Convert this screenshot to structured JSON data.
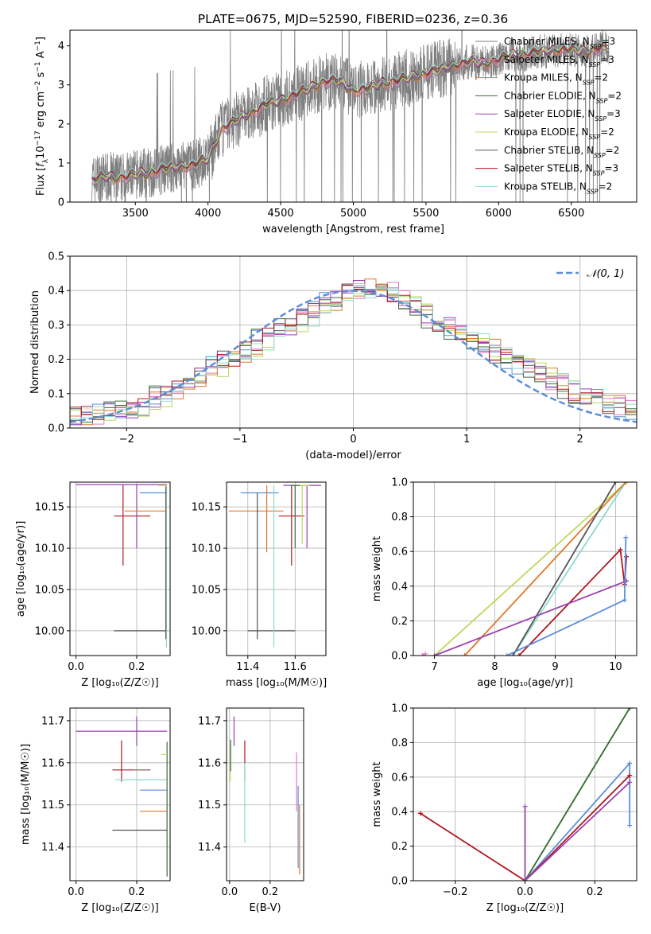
{
  "colors": {
    "chabrier_miles": "#7f7f7f",
    "salpeter_miles": "#e377c2",
    "kroupa_miles": "#e0772a",
    "chabrier_elodie": "#3a6e3a",
    "salpeter_elodie": "#9b3fb0",
    "kroupa_elodie": "#bcd85a",
    "chabrier_stelib": "#555555",
    "salpeter_stelib": "#b0171f",
    "kroupa_stelib": "#8fd9d0",
    "gauss": "#5b8fd8",
    "blue_extra": "#5b8fd8",
    "grid": "#b0b0b0"
  },
  "chart_data": [
    {
      "id": "spectrum",
      "type": "line",
      "title": "PLATE=0675, MJD=52590, FIBERID=0236, z=0.36",
      "xlabel": "wavelength [Angstrom, rest frame]",
      "ylabel": "Flux [f_λ 10^-17 erg cm^-2 s^-1 A^-1]",
      "xlim": [
        3050,
        6950
      ],
      "ylim": [
        0,
        4.4
      ],
      "xticks": [
        "3500",
        "4000",
        "4500",
        "5000",
        "5500",
        "6000",
        "6500"
      ],
      "yticks": [
        "0",
        "1",
        "2",
        "3",
        "4"
      ],
      "grid": false,
      "legend_position": "top-right",
      "legend": [
        {
          "label": "Chabrier MILES, N",
          "sub": "SSP",
          "tail": "=3"
        },
        {
          "label": "Salpeter MILES, N",
          "sub": "SSP",
          "tail": "=3"
        },
        {
          "label": "Kroupa MILES, N",
          "sub": "SSP",
          "tail": "=2"
        },
        {
          "label": "Chabrier ELODIE, N",
          "sub": "SSP",
          "tail": "=2"
        },
        {
          "label": "Salpeter ELODIE, N",
          "sub": "SSP",
          "tail": "=3"
        },
        {
          "label": "Kroupa ELODIE, N",
          "sub": "SSP",
          "tail": "=2"
        },
        {
          "label": "Chabrier STELIB, N",
          "sub": "SSP",
          "tail": "=2"
        },
        {
          "label": "Salpeter STELIB, N",
          "sub": "SSP",
          "tail": "=3"
        },
        {
          "label": "Kroupa STELIB, N",
          "sub": "SSP",
          "tail": "=2"
        }
      ],
      "continuum": {
        "x": [
          3200,
          3250,
          3300,
          3400,
          3500,
          3600,
          3700,
          3800,
          3900,
          4000,
          4100,
          4200,
          4300,
          4400,
          4500,
          4600,
          4700,
          4800,
          4900,
          5000,
          5100,
          5200,
          5300,
          5400,
          5500,
          5600,
          5700,
          5800,
          5900,
          6000,
          6100,
          6200,
          6300,
          6400,
          6500,
          6600,
          6700,
          6750
        ],
        "y": [
          0.55,
          0.62,
          0.65,
          0.62,
          0.7,
          0.75,
          0.85,
          0.9,
          0.95,
          1.1,
          1.9,
          2.1,
          2.3,
          2.5,
          2.6,
          2.75,
          2.9,
          3.1,
          3.1,
          2.85,
          2.9,
          3.05,
          3.1,
          3.2,
          3.3,
          3.4,
          3.5,
          3.6,
          3.55,
          3.65,
          3.75,
          3.8,
          3.85,
          3.9,
          3.9,
          3.85,
          3.95,
          3.95
        ]
      }
    },
    {
      "id": "residuals",
      "type": "histogram",
      "xlabel": "(data-model)/error",
      "ylabel": "Normed distribution",
      "xlim": [
        -2.5,
        2.5
      ],
      "ylim": [
        0,
        0.5
      ],
      "xticks": [
        "−2",
        "−1",
        "0",
        "1",
        "2"
      ],
      "yticks": [
        "0.0",
        "0.1",
        "0.2",
        "0.3",
        "0.4",
        "0.5"
      ],
      "grid": true,
      "legend_position": "top-right",
      "legend": [
        {
          "label": "𝒩(0, 1)"
        }
      ],
      "bin_width": 0.1,
      "base_profile": {
        "x": [
          -2.5,
          -2.0,
          -1.5,
          -1.0,
          -0.5,
          0.0,
          0.25,
          0.5,
          0.75,
          1.0,
          1.5,
          2.0,
          2.5
        ],
        "y": [
          0.03,
          0.05,
          0.12,
          0.22,
          0.31,
          0.4,
          0.41,
          0.37,
          0.31,
          0.27,
          0.18,
          0.1,
          0.05
        ]
      }
    },
    {
      "id": "age_vs_Z",
      "type": "errorbar",
      "xlabel": "Z [log₁₀(Z/Z☉)]",
      "ylabel": "age  [log₁₀(age/yr)]",
      "xlim": [
        -0.02,
        0.31
      ],
      "ylim": [
        9.97,
        10.18
      ],
      "xticks": [
        "0.0",
        "0.2"
      ],
      "yticks": [
        "10.00",
        "10.05",
        "10.10",
        "10.15"
      ],
      "grid": true,
      "points": [
        {
          "x": 0.155,
          "y": 10.139,
          "xlo": 0.125,
          "xhi": 0.245,
          "ylo": 10.079,
          "yhi": 10.177,
          "c": "salpeter_stelib"
        },
        {
          "x": 0.2,
          "y": 10.177,
          "xlo": 0.0,
          "xhi": 0.3,
          "ylo": 10.1,
          "yhi": 10.177,
          "c": "salpeter_elodie"
        },
        {
          "x": 0.255,
          "y": 10.167,
          "xlo": 0.21,
          "xhi": 0.3,
          "ylo": 10.167,
          "yhi": 10.167,
          "c": "blue_extra"
        },
        {
          "x": 0.205,
          "y": 10.0,
          "xlo": 0.125,
          "xhi": 0.3,
          "ylo": 10.0,
          "yhi": 10.0,
          "c": "chabrier_stelib"
        },
        {
          "x": 0.298,
          "y": 10.1,
          "xlo": 0.295,
          "xhi": 0.3,
          "ylo": 9.98,
          "yhi": 10.175,
          "c": "kroupa_stelib"
        },
        {
          "x": 0.296,
          "y": 10.1,
          "xlo": 0.294,
          "xhi": 0.3,
          "ylo": 9.99,
          "yhi": 10.175,
          "c": "chabrier_stelib"
        },
        {
          "x": 0.29,
          "y": 10.145,
          "xlo": 0.16,
          "xhi": 0.3,
          "ylo": 10.145,
          "yhi": 10.145,
          "c": "kroupa_miles"
        },
        {
          "x": 0.295,
          "y": 10.176,
          "xlo": 0.27,
          "xhi": 0.3,
          "ylo": 10.176,
          "yhi": 10.176,
          "c": "kroupa_elodie"
        }
      ]
    },
    {
      "id": "age_vs_mass",
      "type": "errorbar",
      "xlabel": "mass [log₁₀(M/M☉)]",
      "ylabel": "",
      "xlim": [
        11.31,
        11.73
      ],
      "ylim": [
        9.97,
        10.18
      ],
      "xticks": [
        "11.4",
        "11.6"
      ],
      "yticks": [
        "10.00",
        "10.05",
        "10.10",
        "10.15"
      ],
      "grid": true,
      "points": [
        {
          "x": 11.37,
          "y": 10.145,
          "xlo": 11.32,
          "xhi": 11.55,
          "ylo": 10.145,
          "yhi": 10.145,
          "c": "kroupa_miles"
        },
        {
          "x": 11.45,
          "y": 10.167,
          "xlo": 11.37,
          "xhi": 11.53,
          "ylo": 10.167,
          "yhi": 10.167,
          "c": "blue_extra"
        },
        {
          "x": 11.44,
          "y": 10.0,
          "xlo": 11.4,
          "xhi": 11.6,
          "ylo": 9.99,
          "yhi": 10.167,
          "c": "chabrier_stelib"
        },
        {
          "x": 11.48,
          "y": 10.1,
          "xlo": 11.48,
          "xhi": 11.48,
          "ylo": 10.095,
          "yhi": 10.176,
          "c": "kroupa_miles"
        },
        {
          "x": 11.51,
          "y": 10.1,
          "xlo": 11.51,
          "xhi": 11.51,
          "ylo": 9.98,
          "yhi": 10.176,
          "c": "kroupa_stelib"
        },
        {
          "x": 11.585,
          "y": 10.139,
          "xlo": 11.53,
          "xhi": 11.64,
          "ylo": 10.079,
          "yhi": 10.176,
          "c": "salpeter_stelib"
        },
        {
          "x": 11.65,
          "y": 10.176,
          "xlo": 11.55,
          "xhi": 11.71,
          "ylo": 10.1,
          "yhi": 10.176,
          "c": "salpeter_elodie"
        },
        {
          "x": 11.63,
          "y": 10.176,
          "xlo": 11.6,
          "xhi": 11.66,
          "ylo": 10.105,
          "yhi": 10.176,
          "c": "kroupa_elodie"
        },
        {
          "x": 11.6,
          "y": 10.176,
          "xlo": 11.58,
          "xhi": 11.62,
          "ylo": 10.1,
          "yhi": 10.176,
          "c": "chabrier_elodie"
        }
      ]
    },
    {
      "id": "massweight_vs_age",
      "type": "line",
      "xlabel": "age  [log₁₀(age/yr)]",
      "ylabel": "mass weight",
      "xlim": [
        6.65,
        10.35
      ],
      "ylim": [
        0,
        1
      ],
      "xticks": [
        "7",
        "8",
        "9",
        "10"
      ],
      "yticks": [
        "0.0",
        "0.2",
        "0.4",
        "0.6",
        "0.8",
        "1.0"
      ],
      "grid": true,
      "series": [
        {
          "c": "kroupa_elodie",
          "x": [
            7.0,
            10.18
          ],
          "y": [
            0.0,
            1.0
          ]
        },
        {
          "c": "kroupa_stelib",
          "x": [
            8.3,
            10.17
          ],
          "y": [
            0.0,
            1.0
          ]
        },
        {
          "c": "kroupa_miles",
          "x": [
            7.5,
            10.17
          ],
          "y": [
            0.0,
            1.0
          ]
        },
        {
          "c": "chabrier_stelib",
          "x": [
            8.3,
            10.0
          ],
          "y": [
            0.0,
            1.0
          ]
        },
        {
          "c": "salpeter_stelib",
          "x": [
            8.4,
            10.08,
            10.15,
            10.18
          ],
          "y": [
            0.0,
            0.61,
            0.41,
            0.57
          ]
        },
        {
          "c": "salpeter_elodie",
          "x": [
            7.0,
            10.18
          ],
          "y": [
            0.0,
            0.43
          ]
        },
        {
          "c": "blue_extra",
          "x": [
            8.2,
            10.15,
            10.17
          ],
          "y": [
            0.0,
            0.32,
            0.68
          ]
        },
        {
          "c": "salpeter_miles",
          "x": [
            6.8,
            6.85
          ],
          "y": [
            0.0,
            0.01
          ]
        }
      ]
    },
    {
      "id": "mass_vs_Z",
      "type": "errorbar",
      "xlabel": "Z [log₁₀(Z/Z☉)]",
      "ylabel": "mass [log₁₀(M/M☉)]",
      "xlim": [
        -0.02,
        0.31
      ],
      "ylim": [
        11.32,
        11.73
      ],
      "xticks": [
        "0.0",
        "0.2"
      ],
      "yticks": [
        "11.4",
        "11.5",
        "11.6",
        "11.7"
      ],
      "grid": true,
      "points": [
        {
          "x": 0.2,
          "y": 11.675,
          "xlo": 0.0,
          "xhi": 0.3,
          "ylo": 11.64,
          "yhi": 11.71,
          "c": "salpeter_elodie"
        },
        {
          "x": 0.15,
          "y": 11.583,
          "xlo": 0.12,
          "xhi": 0.245,
          "ylo": 11.555,
          "yhi": 11.653,
          "c": "salpeter_stelib"
        },
        {
          "x": 0.2,
          "y": 11.583,
          "xlo": 0.19,
          "xhi": 0.24,
          "ylo": 11.583,
          "yhi": 11.583,
          "c": "chabrier_miles"
        },
        {
          "x": 0.3,
          "y": 11.56,
          "xlo": 0.13,
          "xhi": 0.3,
          "ylo": 11.56,
          "yhi": 11.56,
          "c": "kroupa_stelib"
        },
        {
          "x": 0.3,
          "y": 11.535,
          "xlo": 0.21,
          "xhi": 0.3,
          "ylo": 11.535,
          "yhi": 11.535,
          "c": "blue_extra"
        },
        {
          "x": 0.3,
          "y": 11.485,
          "xlo": 0.21,
          "xhi": 0.3,
          "ylo": 11.485,
          "yhi": 11.485,
          "c": "kroupa_miles"
        },
        {
          "x": 0.3,
          "y": 11.44,
          "xlo": 0.12,
          "xhi": 0.3,
          "ylo": 11.44,
          "yhi": 11.44,
          "c": "chabrier_stelib"
        },
        {
          "x": 0.3,
          "y": 11.6,
          "xlo": 0.3,
          "xhi": 0.3,
          "ylo": 11.33,
          "yhi": 11.65,
          "c": "chabrier_elodie"
        },
        {
          "x": 0.29,
          "y": 11.62,
          "xlo": 0.28,
          "xhi": 0.3,
          "ylo": 11.62,
          "yhi": 11.62,
          "c": "kroupa_elodie"
        }
      ]
    },
    {
      "id": "mass_vs_ebv",
      "type": "errorbar",
      "xlabel": "E(B-V)",
      "ylabel": "",
      "xlim": [
        -0.015,
        0.365
      ],
      "ylim": [
        11.32,
        11.73
      ],
      "xticks": [
        "0.0",
        "0.2"
      ],
      "yticks": [
        "11.4",
        "11.5",
        "11.6",
        "11.7"
      ],
      "grid": true,
      "points": [
        {
          "x": 0.003,
          "y": 11.6,
          "xlo": 0.003,
          "xhi": 0.003,
          "ylo": 11.555,
          "yhi": 11.645,
          "c": "kroupa_elodie"
        },
        {
          "x": 0.005,
          "y": 11.62,
          "xlo": 0.005,
          "xhi": 0.005,
          "ylo": 11.58,
          "yhi": 11.655,
          "c": "chabrier_elodie"
        },
        {
          "x": 0.022,
          "y": 11.675,
          "xlo": 0.022,
          "xhi": 0.022,
          "ylo": 11.64,
          "yhi": 11.71,
          "c": "salpeter_elodie"
        },
        {
          "x": 0.075,
          "y": 11.583,
          "xlo": 0.075,
          "xhi": 0.075,
          "ylo": 11.555,
          "yhi": 11.653,
          "c": "salpeter_stelib"
        },
        {
          "x": 0.075,
          "y": 11.5,
          "xlo": 0.075,
          "xhi": 0.075,
          "ylo": 11.41,
          "yhi": 11.6,
          "c": "kroupa_stelib"
        },
        {
          "x": 0.33,
          "y": 11.56,
          "xlo": 0.33,
          "xhi": 0.33,
          "ylo": 11.485,
          "yhi": 11.625,
          "c": "salpeter_miles"
        },
        {
          "x": 0.338,
          "y": 11.45,
          "xlo": 0.338,
          "xhi": 0.338,
          "ylo": 11.35,
          "yhi": 11.545,
          "c": "blue_extra"
        },
        {
          "x": 0.345,
          "y": 11.42,
          "xlo": 0.345,
          "xhi": 0.345,
          "ylo": 11.335,
          "yhi": 11.5,
          "c": "kroupa_miles"
        }
      ]
    },
    {
      "id": "massweight_vs_Z",
      "type": "line",
      "xlabel": "Z [log₁₀(Z/Z☉)]",
      "ylabel": "mass weight",
      "xlim": [
        -0.32,
        0.32
      ],
      "ylim": [
        0,
        1
      ],
      "xticks": [
        "−0.2",
        "0.0",
        "0.2"
      ],
      "yticks": [
        "0.0",
        "0.2",
        "0.4",
        "0.6",
        "0.8",
        "1.0"
      ],
      "grid": true,
      "series": [
        {
          "c": "kroupa_stelib",
          "x": [
            0.0,
            0.3
          ],
          "y": [
            0.0,
            1.0
          ]
        },
        {
          "c": "kroupa_elodie",
          "x": [
            0.0,
            0.3
          ],
          "y": [
            0.0,
            1.0
          ]
        },
        {
          "c": "chabrier_elodie",
          "x": [
            0.0,
            0.3
          ],
          "y": [
            0.0,
            1.0
          ]
        },
        {
          "c": "blue_extra",
          "x": [
            0.0,
            0.3,
            0.3
          ],
          "y": [
            0.0,
            0.68,
            0.32
          ]
        },
        {
          "c": "salpeter_stelib",
          "x": [
            -0.3,
            0.0,
            0.3
          ],
          "y": [
            0.39,
            0.0,
            0.61
          ]
        },
        {
          "c": "salpeter_elodie",
          "x": [
            0.0,
            0.0,
            0.3
          ],
          "y": [
            0.43,
            0.0,
            0.57
          ]
        }
      ]
    }
  ]
}
